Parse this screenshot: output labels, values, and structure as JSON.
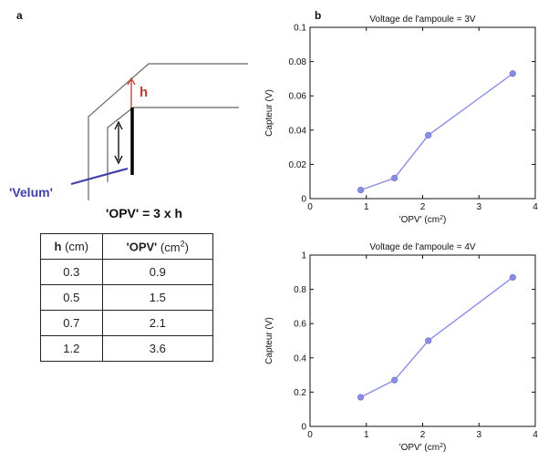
{
  "panel_a": {
    "label": "a",
    "h_symbol": "h",
    "velum_label": "'Velum'",
    "equation": "'OPV' = 3 x h",
    "table": {
      "header_h_main": "h",
      "header_h_sub": " (cm)",
      "header_opv_main": "'OPV'",
      "header_opv_sub": " (cm2)",
      "rows": [
        {
          "h": "0.3",
          "opv": "0.9"
        },
        {
          "h": "0.5",
          "opv": "1.5"
        },
        {
          "h": "0.7",
          "opv": "2.1"
        },
        {
          "h": "1.2",
          "opv": "3.6"
        }
      ]
    }
  },
  "panel_b": {
    "label": "b"
  },
  "chart_data": [
    {
      "type": "line",
      "title": "Voltage de l'ampoule = 3V",
      "xlabel": "'OPV' (cm2)",
      "ylabel": "Capteur (V)",
      "xlim": [
        0,
        4
      ],
      "ylim": [
        0,
        0.1
      ],
      "xticks": [
        0,
        1,
        2,
        3,
        4
      ],
      "yticks": [
        0,
        0.02,
        0.04,
        0.06,
        0.08,
        0.1
      ],
      "ytick_labels": [
        "0",
        "0.02",
        "0.04",
        "0.06",
        "0.08",
        "0.1"
      ],
      "series": [
        {
          "x": [
            0.9,
            1.5,
            2.1,
            3.6
          ],
          "y": [
            0.005,
            0.012,
            0.037,
            0.073
          ]
        }
      ],
      "color": "#8a8ee0",
      "grid": false
    },
    {
      "type": "line",
      "title": "Voltage de l'ampoule = 4V",
      "xlabel": "'OPV' (cm2)",
      "ylabel": "Capteur (V)",
      "xlim": [
        0,
        4
      ],
      "ylim": [
        0,
        1
      ],
      "xticks": [
        0,
        1,
        2,
        3,
        4
      ],
      "yticks": [
        0,
        0.2,
        0.4,
        0.6,
        0.8,
        1
      ],
      "ytick_labels": [
        "0",
        "0.2",
        "0.4",
        "0.6",
        "0.8",
        "1"
      ],
      "series": [
        {
          "x": [
            0.9,
            1.5,
            2.1,
            3.6
          ],
          "y": [
            0.17,
            0.27,
            0.5,
            0.87
          ]
        }
      ],
      "color": "#8a8ee0",
      "grid": false
    }
  ]
}
